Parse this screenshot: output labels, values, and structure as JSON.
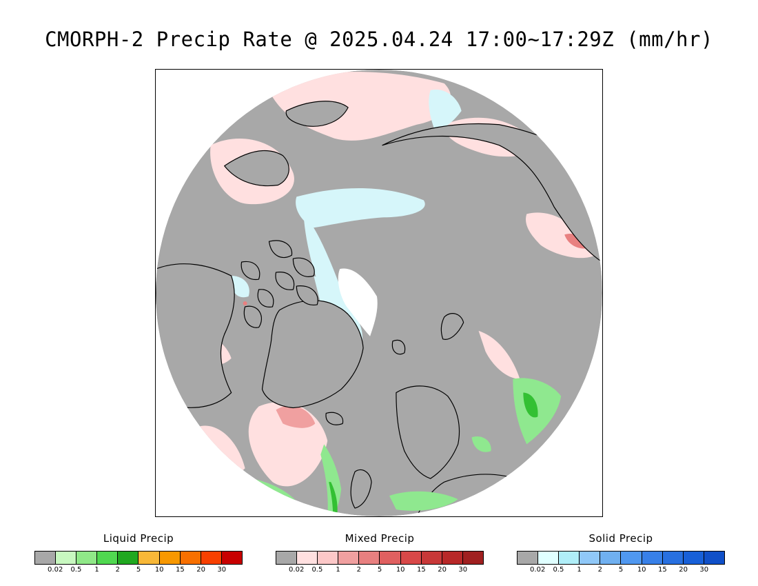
{
  "title": "CMORPH-2 Precip Rate @ 2025.04.24 17:00~17:29Z (mm/hr)",
  "map": {
    "projection": "north-polar-stereographic",
    "colors": {
      "ocean_no_precip": "#a8a8a8",
      "coastline": "#000000",
      "mixed_light": "#ffe0e0",
      "solid_light": "#d6f6fa",
      "liquid_light": "#8fe88f",
      "liquid_moderate": "#33c033",
      "mixed_moderate": "#f0a0a0",
      "no_data": "#ffffff"
    }
  },
  "legends": [
    {
      "title": "Liquid Precip",
      "colors": [
        "#a8a8a8",
        "#c8f8c0",
        "#90e888",
        "#50d850",
        "#20a820",
        "#f8b838",
        "#f89800",
        "#f87000",
        "#f84000",
        "#c80000"
      ],
      "ticks": [
        "0.02",
        "0.5",
        "1",
        "2",
        "5",
        "10",
        "15",
        "20",
        "30"
      ]
    },
    {
      "title": "Mixed Precip",
      "colors": [
        "#a8a8a8",
        "#ffe0e0",
        "#fcc8c8",
        "#f0a0a0",
        "#e88080",
        "#e06060",
        "#d84848",
        "#c83838",
        "#b82828",
        "#a02020"
      ],
      "ticks": [
        "0.02",
        "0.5",
        "1",
        "2",
        "5",
        "10",
        "15",
        "20",
        "30"
      ]
    },
    {
      "title": "Solid Precip",
      "colors": [
        "#a8a8a8",
        "#e0ffff",
        "#b0eef8",
        "#90c8f8",
        "#70b0f0",
        "#5098f0",
        "#3880e8",
        "#2870e0",
        "#1860d8",
        "#1050c8"
      ],
      "ticks": [
        "0.02",
        "0.5",
        "1",
        "2",
        "5",
        "10",
        "15",
        "20",
        "30"
      ]
    }
  ]
}
